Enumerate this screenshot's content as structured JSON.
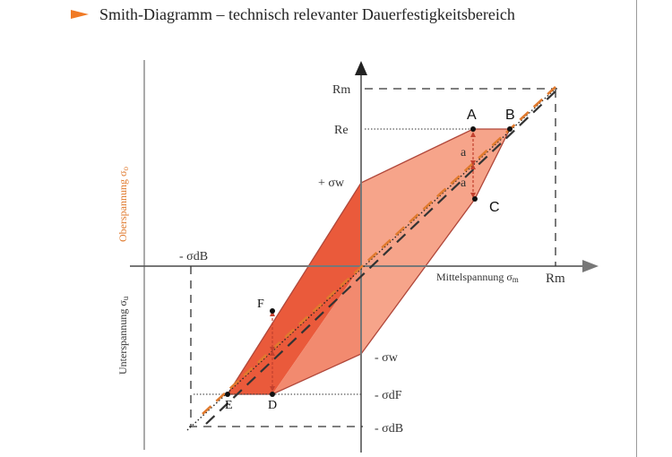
{
  "title": "Smith-Diagramm – technisch relevanter Dauerfestigkeitsbereich",
  "colors": {
    "accent_orange": "#e07a2e",
    "upper_region": "#f28a6f",
    "lower_region": "#ea5a3b",
    "fill_light": "#f6a48a",
    "outline": "#b0473a",
    "dimension_arrow": "#c2402e",
    "axis": "#777777",
    "dashed_line": "#333333"
  },
  "axes": {
    "x_label_main": "Mittelspannung σ",
    "x_label_sub": "m",
    "x_end_label": "Rm",
    "y_upper_label_main": "Oberspannung σ",
    "y_upper_label_sub": "o",
    "y_lower_label_main": "Unterspannung σ",
    "y_lower_label_sub": "u"
  },
  "y_ticks": {
    "rm": "Rm",
    "re": "Re",
    "plus_sigma_w": "+ σw",
    "minus_sigma_w": "- σw",
    "minus_sigma_df": "- σdF",
    "minus_sigma_db": "- σdB"
  },
  "x_ticks": {
    "minus_sigma_db": "- σdB"
  },
  "points": {
    "A": "A",
    "B": "B",
    "C": "C",
    "D": "D",
    "E": "E",
    "F": "F"
  },
  "dimension_labels": {
    "a_upper": "a",
    "a_lower": "a"
  }
}
